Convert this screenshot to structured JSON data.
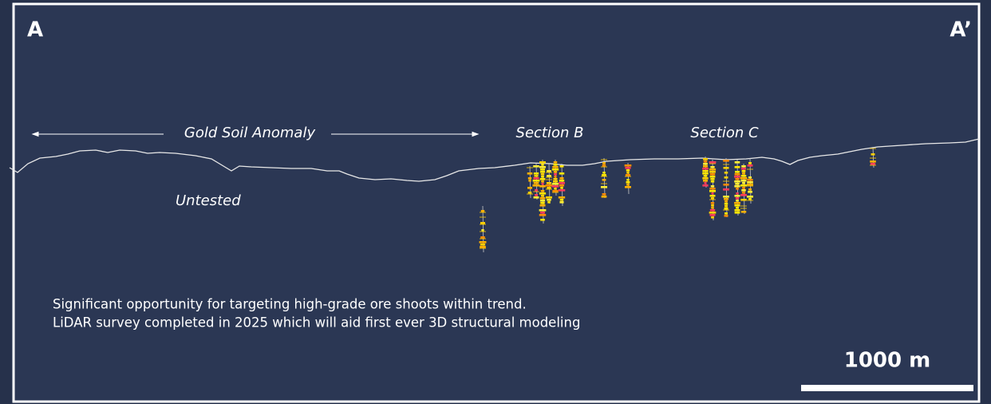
{
  "section": {
    "start_label": "A",
    "end_label": "A’",
    "anomaly_label": "Gold Soil Anomaly",
    "section_b_label": "Section B",
    "section_c_label": "Section C",
    "untested_label": "Untested"
  },
  "notes": [
    "Significant opportunity for targeting high-grade ore shoots within trend.",
    "LiDAR survey completed in 2025 which will aid first ever 3D structural modeling"
  ],
  "scale_bar": {
    "label": "1000 m"
  }
}
